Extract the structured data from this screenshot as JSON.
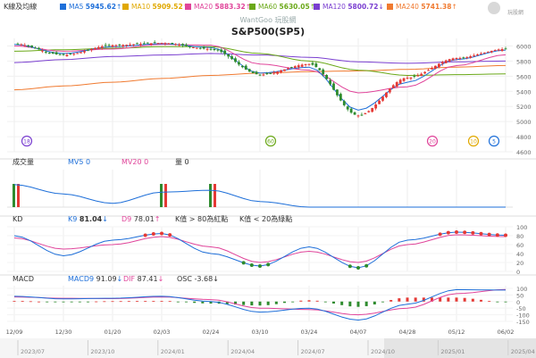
{
  "header": {
    "title_label": "K線及均線",
    "ma_items": [
      {
        "label": "MA5",
        "value": "5945.62",
        "arrow": "↑",
        "color": "#1e6fd9"
      },
      {
        "label": "MA10",
        "value": "5909.52",
        "arrow": "↑",
        "color": "#e0a800"
      },
      {
        "label": "MA20",
        "value": "5883.32",
        "arrow": "↑",
        "color": "#e0449a"
      },
      {
        "label": "MA60",
        "value": "5630.05",
        "arrow": "↑",
        "color": "#6aa818"
      },
      {
        "label": "MA120",
        "value": "5800.72",
        "arrow": "↓",
        "color": "#7a3fd0"
      },
      {
        "label": "MA240",
        "value": "5741.38",
        "arrow": "↑",
        "color": "#f07a30"
      }
    ],
    "watermark": "WantGoo 玩股網",
    "symbol_title": "S&P500(SP5)",
    "logo_text": "玩股網"
  },
  "price_axis": {
    "ticks": [
      "6000",
      "5800",
      "5600",
      "5400",
      "5200",
      "5000",
      "4800",
      "4600"
    ]
  },
  "event_badges": [
    {
      "text": "18",
      "color": "#7a3fd0"
    },
    {
      "text": "60",
      "color": "#6aa818"
    },
    {
      "text": "20",
      "color": "#e0449a"
    },
    {
      "text": "10",
      "color": "#e0a800"
    },
    {
      "text": "5",
      "color": "#1e6fd9"
    }
  ],
  "volume_panel": {
    "title": "成交量",
    "mv5_label": "MV5",
    "mv5_value": "0",
    "mv20_label": "MV20",
    "mv20_value": "0",
    "vol_label": "量",
    "vol_value": "0",
    "colors": {
      "mv5": "#1e6fd9",
      "mv20": "#e0449a"
    }
  },
  "kd_panel": {
    "title": "KD",
    "k_label": "K9",
    "k_value": "81.04",
    "k_arrow": "↓",
    "d_label": "D9",
    "d_value": "78.01",
    "d_arrow": "↑",
    "note1": "K值 > 80為紅點",
    "note2": "K值 < 20為綠點",
    "axis_ticks": [
      "100",
      "80",
      "60",
      "40",
      "20",
      "0"
    ],
    "colors": {
      "k": "#1e6fd9",
      "d": "#e0449a"
    }
  },
  "macd_panel": {
    "title": "MACD",
    "macd_label": "MACD9",
    "macd_value": "91.09",
    "macd_arrow": "↓",
    "dif_label": "DIF",
    "dif_value": "87.41",
    "dif_arrow": "↓",
    "osc_label": "OSC",
    "osc_value": "-3.68",
    "osc_arrow": "↓",
    "axis_ticks": [
      "100",
      "50",
      "0",
      "-50",
      "-100",
      "-150"
    ],
    "colors": {
      "macd": "#1e6fd9",
      "dif": "#e0449a"
    }
  },
  "date_axis": {
    "ticks": [
      "12/09",
      "12/30",
      "01/20",
      "02/03",
      "02/24",
      "03/10",
      "03/24",
      "04/07",
      "04/28",
      "05/12",
      "06/02"
    ]
  },
  "timeline": {
    "labels": [
      "2023/07",
      "2023/10",
      "2024/01",
      "2024/04",
      "2024/07",
      "2024/10",
      "2025/01",
      "2025/04"
    ]
  },
  "chart_data": {
    "type": "candlestick",
    "title": "S&P500(SP5)",
    "ylim": [
      4600,
      6100
    ],
    "x": [
      "12/09",
      "12/30",
      "01/20",
      "02/03",
      "02/24",
      "03/10",
      "03/24",
      "04/07",
      "04/28",
      "05/12",
      "06/02"
    ],
    "close": [
      6030,
      5880,
      6010,
      6040,
      5960,
      5620,
      5760,
      5080,
      5580,
      5840,
      5960
    ],
    "ma5": [
      6020,
      5900,
      5990,
      6030,
      5980,
      5640,
      5720,
      5150,
      5520,
      5820,
      5945
    ],
    "ma20": [
      6000,
      5930,
      5960,
      6020,
      6010,
      5760,
      5680,
      5380,
      5460,
      5740,
      5883
    ],
    "ma60": [
      5930,
      5950,
      5970,
      5990,
      5990,
      5900,
      5800,
      5680,
      5610,
      5620,
      5630
    ],
    "ma120": [
      5780,
      5820,
      5860,
      5880,
      5900,
      5880,
      5850,
      5790,
      5770,
      5790,
      5800
    ],
    "ma240": [
      5420,
      5470,
      5520,
      5570,
      5610,
      5640,
      5660,
      5670,
      5690,
      5720,
      5741
    ],
    "volume_bars": [
      1,
      0,
      0,
      1,
      1,
      0,
      0,
      0,
      0,
      0,
      0
    ],
    "volume_mv5": [
      60,
      35,
      10,
      40,
      45,
      15,
      0,
      0,
      0,
      0,
      0
    ],
    "kd_k": [
      80,
      35,
      70,
      85,
      40,
      12,
      55,
      8,
      70,
      88,
      81
    ],
    "kd_d": [
      75,
      50,
      60,
      78,
      55,
      20,
      45,
      20,
      60,
      82,
      78
    ],
    "macd_dif": [
      40,
      20,
      25,
      40,
      0,
      -80,
      -50,
      -140,
      -20,
      90,
      87
    ],
    "macd_signal": [
      35,
      25,
      22,
      35,
      15,
      -50,
      -60,
      -100,
      -50,
      60,
      91
    ],
    "macd_osc": [
      5,
      -5,
      3,
      5,
      -15,
      -30,
      10,
      -40,
      30,
      30,
      -4
    ],
    "kd_ylim": [
      0,
      100
    ],
    "macd_ylim": [
      -150,
      120
    ]
  }
}
